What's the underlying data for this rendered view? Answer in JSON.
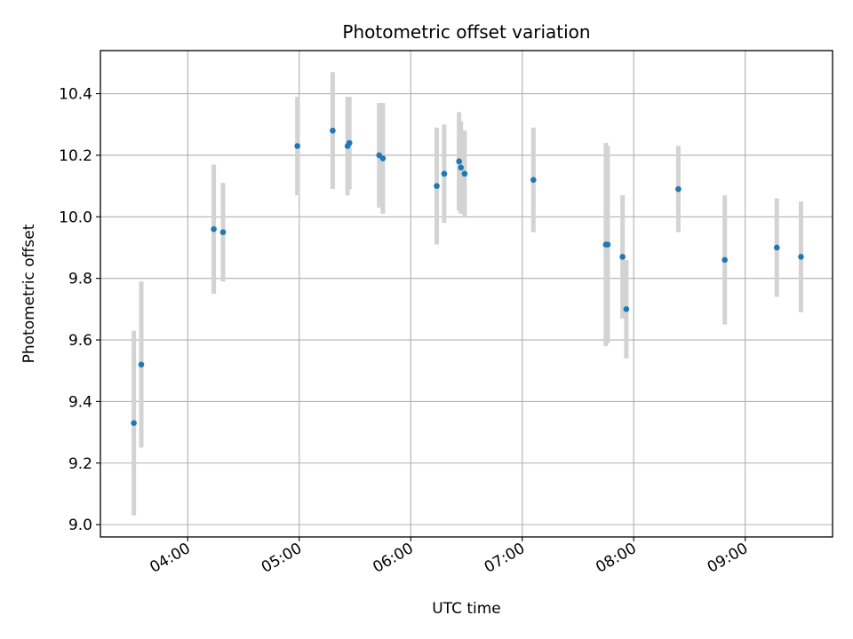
{
  "chart_data": {
    "type": "scatter",
    "title": "Photometric offset variation",
    "xlabel": "UTC time",
    "ylabel": "Photometric offset",
    "grid": true,
    "xlim": [
      "03:13",
      "09:47"
    ],
    "ylim": [
      8.96,
      10.54
    ],
    "x_ticks": [
      "04:00",
      "05:00",
      "06:00",
      "07:00",
      "08:00",
      "09:00"
    ],
    "y_ticks": [
      "9.0",
      "9.2",
      "9.4",
      "9.6",
      "9.8",
      "10.0",
      "10.2",
      "10.4"
    ],
    "series": [
      {
        "marker_color": "#1f77b4",
        "errorbar_color": "#d3d3d3",
        "points": [
          {
            "x": "03:31",
            "y": 9.33,
            "yerr": 0.3
          },
          {
            "x": "03:35",
            "y": 9.52,
            "yerr": 0.27
          },
          {
            "x": "04:14",
            "y": 9.96,
            "yerr": 0.21
          },
          {
            "x": "04:19",
            "y": 9.95,
            "yerr": 0.16
          },
          {
            "x": "04:59",
            "y": 10.23,
            "yerr": 0.16
          },
          {
            "x": "05:18",
            "y": 10.28,
            "yerr": 0.19
          },
          {
            "x": "05:26",
            "y": 10.23,
            "yerr": 0.16
          },
          {
            "x": "05:27",
            "y": 10.24,
            "yerr": 0.15
          },
          {
            "x": "05:43",
            "y": 10.2,
            "yerr": 0.17
          },
          {
            "x": "05:45",
            "y": 10.19,
            "yerr": 0.18
          },
          {
            "x": "06:14",
            "y": 10.1,
            "yerr": 0.19
          },
          {
            "x": "06:18",
            "y": 10.14,
            "yerr": 0.16
          },
          {
            "x": "06:26",
            "y": 10.18,
            "yerr": 0.16
          },
          {
            "x": "06:27",
            "y": 10.16,
            "yerr": 0.15
          },
          {
            "x": "06:29",
            "y": 10.14,
            "yerr": 0.14
          },
          {
            "x": "07:06",
            "y": 10.12,
            "yerr": 0.17
          },
          {
            "x": "07:45",
            "y": 9.91,
            "yerr": 0.33
          },
          {
            "x": "07:46",
            "y": 9.91,
            "yerr": 0.32
          },
          {
            "x": "07:54",
            "y": 9.87,
            "yerr": 0.2
          },
          {
            "x": "07:56",
            "y": 9.7,
            "yerr": 0.16
          },
          {
            "x": "08:24",
            "y": 10.09,
            "yerr": 0.14
          },
          {
            "x": "08:49",
            "y": 9.86,
            "yerr": 0.21
          },
          {
            "x": "09:17",
            "y": 9.9,
            "yerr": 0.16
          },
          {
            "x": "09:30",
            "y": 9.87,
            "yerr": 0.18
          }
        ]
      }
    ]
  }
}
